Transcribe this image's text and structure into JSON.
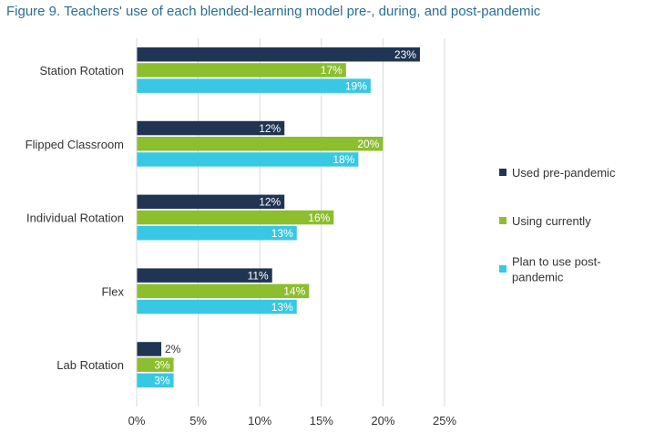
{
  "chart_data": {
    "type": "bar",
    "orientation": "horizontal",
    "title": "Figure 9. Teachers' use of each blended-learning model pre-, during, and post-pandemic",
    "categories": [
      "Station Rotation",
      "Flipped Classroom",
      "Individual Rotation",
      "Flex",
      "Lab Rotation"
    ],
    "series": [
      {
        "name": "Used pre-pandemic",
        "legend_lines": [
          "Used pre-pandemic"
        ],
        "color": "#1f3553",
        "values": [
          23,
          12,
          12,
          11,
          2
        ]
      },
      {
        "name": "Using currently",
        "legend_lines": [
          "Using currently"
        ],
        "color": "#8cbe2e",
        "values": [
          17,
          20,
          16,
          14,
          3
        ]
      },
      {
        "name": "Plan to use post-pandemic",
        "legend_lines": [
          "Plan to use post-",
          "pandemic"
        ],
        "color": "#38c8e4",
        "values": [
          19,
          18,
          13,
          13,
          3
        ]
      }
    ],
    "value_suffix": "%",
    "xlim": [
      0,
      25
    ],
    "xticks": [
      0,
      5,
      10,
      15,
      20,
      25
    ],
    "xtick_labels": [
      "0%",
      "5%",
      "10%",
      "15%",
      "20%",
      "25%"
    ],
    "grid": true,
    "legend_position": "right"
  }
}
